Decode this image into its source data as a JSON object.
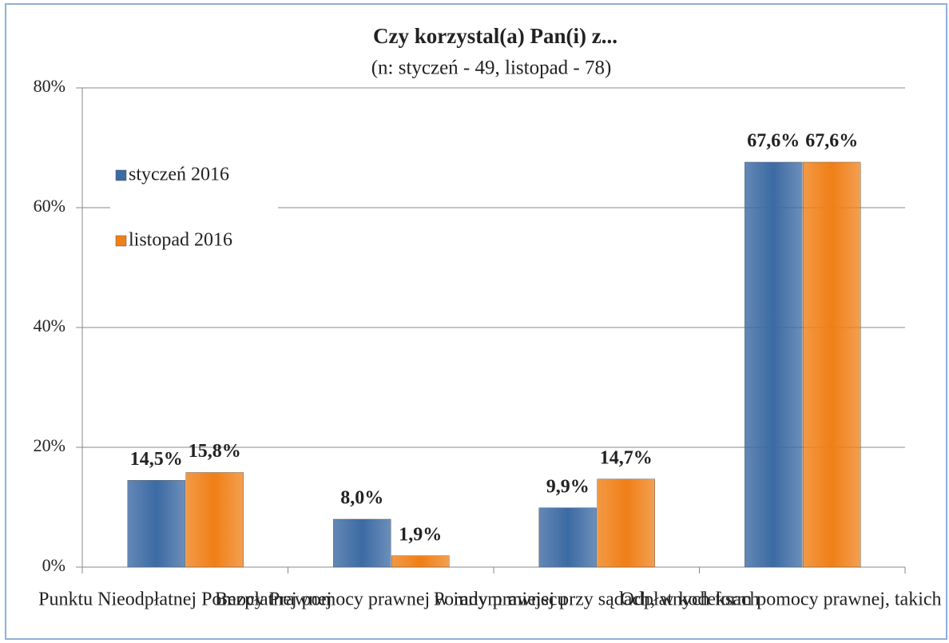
{
  "chart_data": {
    "type": "bar",
    "title": "Czy korzystal(a) Pan(i) z...",
    "subtitle": "(n: styczeń - 49, listopad - 78)",
    "categories": [
      "Punktu Nieodpłatnej Pomocy Prawnej",
      "Bezpłatnej pomocy prawnej w innym miejscu",
      "Porady prawnej przy sądach, w kodeksach",
      "Odpłatnych form pomocy prawnej, takich jak p"
    ],
    "series": [
      {
        "name": "styczeń 2016",
        "color": "#3c6aa3",
        "values": [
          14.5,
          8.0,
          9.9,
          67.6
        ],
        "value_labels": [
          "14,5%",
          "8,0%",
          "9,9%",
          "67,6%"
        ]
      },
      {
        "name": "listopad 2016",
        "color": "#f07f17",
        "values": [
          15.8,
          1.9,
          14.7,
          67.6
        ],
        "value_labels": [
          "15,8%",
          "1,9%",
          "14,7%",
          "67,6%"
        ]
      }
    ],
    "ylim": [
      0,
      80
    ],
    "yticks": [
      {
        "value": 0,
        "label": "0%"
      },
      {
        "value": 20,
        "label": "20%"
      },
      {
        "value": 40,
        "label": "40%"
      },
      {
        "value": 60,
        "label": "60%"
      },
      {
        "value": 80,
        "label": "80%"
      }
    ],
    "grid": true,
    "legend": "left"
  }
}
